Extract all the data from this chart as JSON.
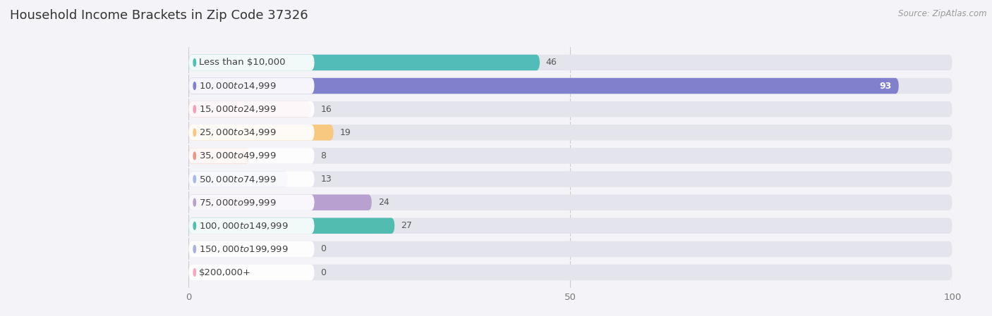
{
  "title": "Household Income Brackets in Zip Code 37326",
  "source": "Source: ZipAtlas.com",
  "categories": [
    "Less than $10,000",
    "$10,000 to $14,999",
    "$15,000 to $24,999",
    "$25,000 to $34,999",
    "$35,000 to $49,999",
    "$50,000 to $74,999",
    "$75,000 to $99,999",
    "$100,000 to $149,999",
    "$150,000 to $199,999",
    "$200,000+"
  ],
  "values": [
    46,
    93,
    16,
    19,
    8,
    13,
    24,
    27,
    0,
    0
  ],
  "bar_colors": [
    "#52bdb8",
    "#8080cc",
    "#f0a0b8",
    "#f8c880",
    "#e89888",
    "#a8b8e8",
    "#b8a0d0",
    "#52bcb0",
    "#a8b0e0",
    "#f4a8c4"
  ],
  "xlim": [
    0,
    100
  ],
  "xticks": [
    0,
    50,
    100
  ],
  "background_color": "#f4f4f8",
  "bar_bg_color": "#e4e4ec",
  "title_fontsize": 13,
  "label_fontsize": 9.5,
  "value_fontsize": 9,
  "bar_height": 0.68,
  "fig_width": 14.06,
  "fig_height": 4.49
}
